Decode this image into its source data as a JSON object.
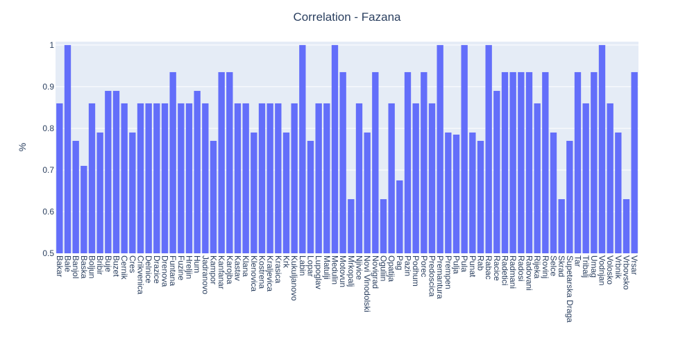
{
  "chart_data": {
    "type": "bar",
    "title": "Correlation - Fazana",
    "xlabel": "",
    "ylabel": "%",
    "ylim": [
      0.5,
      1.0
    ],
    "yticks": [
      "0.5",
      "0.6",
      "0.7",
      "0.8",
      "0.9",
      "1"
    ],
    "grid": true,
    "colors": {
      "bar": "#636efa",
      "plot_bg": "#e5ecf6",
      "grid": "#ffffff",
      "text": "#2a3f5f"
    },
    "categories": [
      "Bakar",
      "Bale",
      "Banjol",
      "Baska",
      "Boljun",
      "Bribir",
      "Buje",
      "Buzet",
      "Cernik",
      "Cres",
      "Crikvenica",
      "Delnice",
      "Drazice",
      "Drenova",
      "Funtana",
      "Fuzine",
      "Hreljin",
      "Hum",
      "Jadranovo",
      "Kampor",
      "Kanfanar",
      "Karojba",
      "Kastav",
      "Klana",
      "Klenovica",
      "Kostrena",
      "Kraljevica",
      "Krasica",
      "Krk",
      "Kukuljanovo",
      "Labin",
      "Lopar",
      "Lupoglav",
      "Matulji",
      "Medulin",
      "Motovun",
      "Mrkopalj",
      "Njivice",
      "Novi Vinodolski",
      "Novigrad",
      "Oguliin",
      "Opatija",
      "Pag",
      "Pazin",
      "Podhum",
      "Porec",
      "Predoscica",
      "Premantura",
      "Prempen",
      "Pulja",
      "Pula",
      "Punat",
      "Rab",
      "Rabac",
      "Racice",
      "Radetici",
      "Radmani",
      "Radosi",
      "Radovani",
      "Rijeka",
      "Rovinj",
      "Selce",
      "Skrad",
      "Supetarska Draga",
      "Tar",
      "Tribalj",
      "Umag",
      "Vodnjan",
      "Volosko",
      "Vrbnik",
      "Vrbovsko",
      "Vrsar"
    ],
    "values": [
      0.86,
      1.0,
      0.77,
      0.71,
      0.86,
      0.79,
      0.89,
      0.89,
      0.86,
      0.79,
      0.86,
      0.86,
      0.86,
      0.86,
      0.935,
      0.86,
      0.86,
      0.89,
      0.86,
      0.77,
      0.935,
      0.935,
      0.86,
      0.86,
      0.79,
      0.86,
      0.86,
      0.86,
      0.79,
      0.86,
      1.0,
      0.77,
      0.86,
      0.86,
      1.0,
      0.935,
      0.63,
      0.86,
      0.79,
      0.935,
      0.63,
      0.86,
      0.675,
      0.935,
      0.86,
      0.935,
      0.86,
      1.0,
      0.79,
      0.785,
      1.0,
      0.79,
      0.77,
      1.0,
      0.89,
      0.935,
      0.935,
      0.935,
      0.935,
      0.86,
      0.935,
      0.79,
      0.63,
      0.77,
      0.935,
      0.86,
      0.935,
      1.0,
      0.86,
      0.79,
      0.63,
      0.935
    ]
  }
}
